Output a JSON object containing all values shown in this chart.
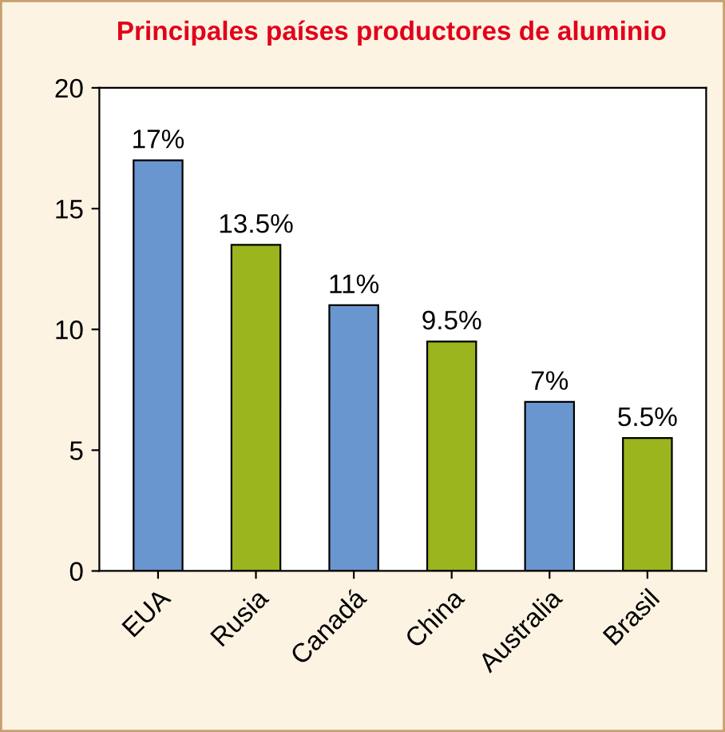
{
  "chart_data": {
    "type": "bar",
    "title": "Principales países productores de aluminio",
    "categories": [
      "EUA",
      "Rusia",
      "Canadá",
      "China",
      "Australia",
      "Brasil"
    ],
    "values": [
      17,
      13.5,
      11,
      9.5,
      7,
      5.5
    ],
    "colors": [
      "#6a96cf",
      "#9ab51e",
      "#6a96cf",
      "#9ab51e",
      "#6a96cf",
      "#9ab51e"
    ],
    "value_labels": [
      "17%",
      "13.5%",
      "11%",
      "9.5%",
      "7%",
      "5.5%"
    ],
    "ylim": [
      0,
      20
    ],
    "yticks": [
      0,
      5,
      10,
      15,
      20
    ]
  }
}
